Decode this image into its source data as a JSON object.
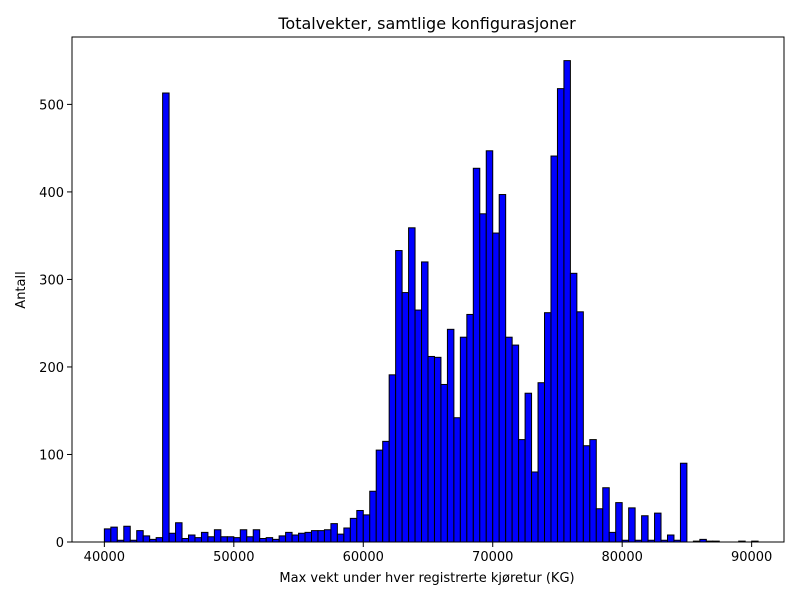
{
  "chart_data": {
    "type": "bar",
    "title": "Totalvekter, samtlige konfigurasjoner",
    "xlabel": "Max vekt under hver registrerte kjøretur (KG)",
    "ylabel": "Antall",
    "xlim": [
      37500,
      92500
    ],
    "ylim": [
      0,
      577
    ],
    "xticks": [
      40000,
      50000,
      60000,
      70000,
      80000,
      90000
    ],
    "yticks": [
      0,
      100,
      200,
      300,
      400,
      500
    ],
    "bin_start": 40000,
    "bin_width": 500,
    "values": [
      15,
      17,
      2,
      18,
      2,
      13,
      7,
      3,
      5,
      513,
      10,
      22,
      4,
      8,
      5,
      11,
      6,
      14,
      6,
      6,
      5,
      14,
      6,
      14,
      4,
      5,
      3,
      7,
      11,
      8,
      10,
      11,
      13,
      13,
      14,
      21,
      9,
      16,
      27,
      36,
      31,
      58,
      105,
      115,
      191,
      333,
      285,
      359,
      265,
      320,
      212,
      211,
      180,
      243,
      142,
      234,
      260,
      427,
      375,
      447,
      353,
      397,
      234,
      225,
      117,
      170,
      80,
      182,
      262,
      441,
      518,
      550,
      307,
      263,
      110,
      117,
      38,
      62,
      11,
      45,
      2,
      39,
      2,
      30,
      2,
      33,
      2,
      8,
      2,
      90,
      0,
      1,
      3,
      1,
      1,
      0,
      0,
      0,
      1,
      0,
      1
    ],
    "bar_color": "#0000ff",
    "edge_color": "#000000",
    "grid": false,
    "legend": "none"
  }
}
